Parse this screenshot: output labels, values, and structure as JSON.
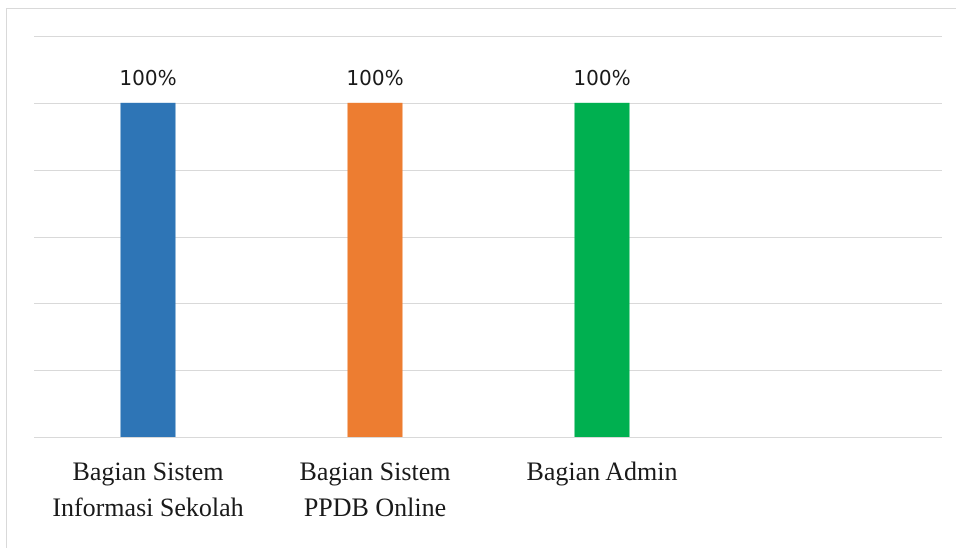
{
  "chart_data": {
    "type": "bar",
    "categories": [
      [
        "Bagian Sistem",
        "Informasi Sekolah"
      ],
      [
        "Bagian Sistem",
        "PPDB Online"
      ],
      [
        "Bagian Admin"
      ]
    ],
    "values": [
      100,
      100,
      100
    ],
    "data_labels": [
      "100%",
      "100%",
      "100%"
    ],
    "colors": [
      "#2e75b6",
      "#ed7d31",
      "#00b050"
    ],
    "ylim": [
      0,
      120
    ],
    "grid": true,
    "legend": "none",
    "title": "",
    "xlabel": "",
    "ylabel": ""
  }
}
